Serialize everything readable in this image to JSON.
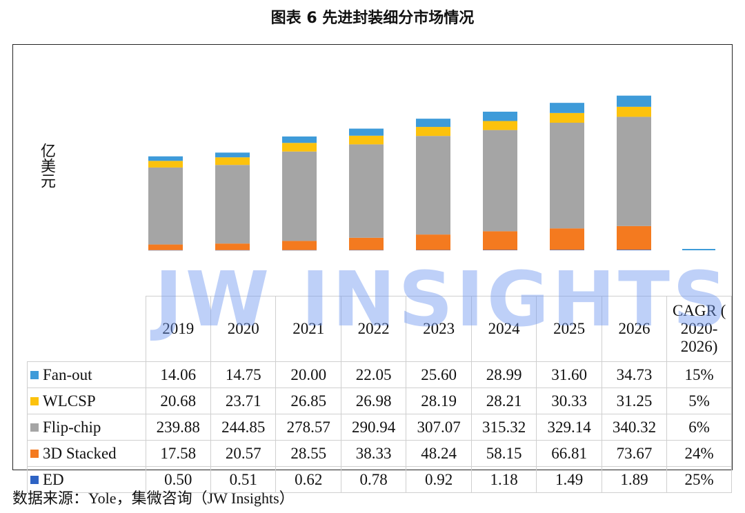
{
  "title": "图表 6 先进封装细分市场情况",
  "ylabel": "亿美元",
  "watermark": "JW INSIGHTS",
  "source": "数据来源：Yole，集微咨询（JW Insights）",
  "cagr_header": "CAGR ( 2020-2026)",
  "chart_data": {
    "type": "bar",
    "stacked": true,
    "title": "图表 6 先进封装细分市场情况",
    "ylabel": "亿美元",
    "categories": [
      "2019",
      "2020",
      "2021",
      "2022",
      "2023",
      "2024",
      "2025",
      "2026"
    ],
    "series": [
      {
        "name": "ED",
        "color": "#2e63c4",
        "values": [
          0.5,
          0.51,
          0.62,
          0.78,
          0.92,
          1.18,
          1.49,
          1.89
        ],
        "cagr": "25%"
      },
      {
        "name": "3D Stacked",
        "color": "#f47a1f",
        "values": [
          17.58,
          20.57,
          28.55,
          38.33,
          48.24,
          58.15,
          66.81,
          73.67
        ],
        "cagr": "24%"
      },
      {
        "name": "Flip-chip",
        "color": "#a5a5a5",
        "values": [
          239.88,
          244.85,
          278.57,
          290.94,
          307.07,
          315.32,
          329.14,
          340.32
        ],
        "cagr": "6%"
      },
      {
        "name": "WLCSP",
        "color": "#fcc20d",
        "values": [
          20.68,
          23.71,
          26.85,
          26.98,
          28.19,
          28.21,
          30.33,
          31.25
        ],
        "cagr": "5%"
      },
      {
        "name": "Fan-out",
        "color": "#3e9bd9",
        "values": [
          14.06,
          14.75,
          20.0,
          22.05,
          25.6,
          28.99,
          31.6,
          34.73
        ],
        "cagr": "15%"
      }
    ],
    "table_rows": [
      {
        "name": "Fan-out",
        "color": "#3e9bd9",
        "values": [
          "14.06",
          "14.75",
          "20.00",
          "22.05",
          "25.60",
          "28.99",
          "31.60",
          "34.73"
        ],
        "cagr": "15%"
      },
      {
        "name": "WLCSP",
        "color": "#fcc20d",
        "values": [
          "20.68",
          "23.71",
          "26.85",
          "26.98",
          "28.19",
          "28.21",
          "30.33",
          "31.25"
        ],
        "cagr": "5%"
      },
      {
        "name": "Flip-chip",
        "color": "#a5a5a5",
        "values": [
          "239.88",
          "244.85",
          "278.57",
          "290.94",
          "307.07",
          "315.32",
          "329.14",
          "340.32"
        ],
        "cagr": "6%"
      },
      {
        "name": "3D Stacked",
        "color": "#f47a1f",
        "values": [
          "17.58",
          "20.57",
          "28.55",
          "38.33",
          "48.24",
          "58.15",
          "66.81",
          "73.67"
        ],
        "cagr": "24%"
      },
      {
        "name": "ED",
        "color": "#2e63c4",
        "values": [
          "0.50",
          "0.51",
          "0.62",
          "0.78",
          "0.92",
          "1.18",
          "1.49",
          "1.89"
        ],
        "cagr": "25%"
      }
    ]
  }
}
